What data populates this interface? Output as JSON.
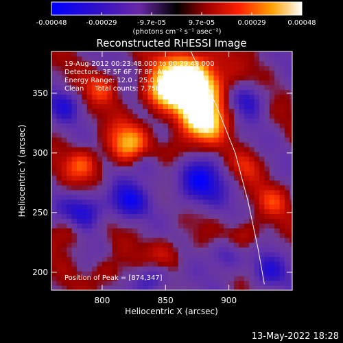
{
  "chart_data": {
    "type": "heatmap",
    "title": "Reconstructed RHESSI Image",
    "xlabel": "Heliocentric X (arcsec)",
    "ylabel": "Heliocentric Y (arcsec)",
    "xlim": [
      760,
      950
    ],
    "ylim": [
      185,
      385
    ],
    "x_ticks": [
      "800",
      "850",
      "900"
    ],
    "y_ticks": [
      "200",
      "250",
      "300",
      "350"
    ],
    "colorbar": {
      "ticks": [
        "-0.00048",
        "-0.00029",
        "-9.7e-05",
        "9.7e-05",
        "0.00029",
        "0.00048"
      ],
      "unit_label": "(photons cm⁻² s⁻¹ asec⁻²)",
      "range": [
        -0.00048,
        0.00048
      ]
    },
    "annotations": [
      "19-Aug-2012 00:23:48.000 to 00:29:48.000",
      "Detectors: 3F 5F 6F 7F 8F, Att 0 to 0",
      "Energy Range: 12.0 - 25.0 keV",
      "Clean     Total counts: 7.75E+03"
    ],
    "peak_label": "Position of Peak = [874,347]",
    "peak": [
      874,
      347
    ],
    "limb_arc": [
      [
        870,
        385
      ],
      [
        890,
        340
      ],
      [
        905,
        300
      ],
      [
        915,
        260
      ],
      [
        923,
        220
      ],
      [
        928,
        190
      ]
    ],
    "sources": [
      {
        "x": 875,
        "y": 350,
        "r": 18,
        "v": 1.0
      },
      {
        "x": 880,
        "y": 325,
        "r": 12,
        "v": 0.8
      },
      {
        "x": 865,
        "y": 365,
        "r": 16,
        "v": 0.85
      },
      {
        "x": 845,
        "y": 350,
        "r": 10,
        "v": 0.6
      },
      {
        "x": 820,
        "y": 308,
        "r": 12,
        "v": 0.75
      },
      {
        "x": 785,
        "y": 290,
        "r": 10,
        "v": 0.6
      },
      {
        "x": 775,
        "y": 235,
        "r": 10,
        "v": 0.5
      },
      {
        "x": 800,
        "y": 355,
        "r": 10,
        "v": 0.45
      },
      {
        "x": 850,
        "y": 215,
        "r": 10,
        "v": 0.45
      },
      {
        "x": 912,
        "y": 230,
        "r": 10,
        "v": 0.45
      },
      {
        "x": 860,
        "y": 300,
        "r": 10,
        "v": 0.35
      },
      {
        "x": 915,
        "y": 290,
        "r": 9,
        "v": 0.35
      },
      {
        "x": 805,
        "y": 200,
        "r": 10,
        "v": 0.35
      },
      {
        "x": 935,
        "y": 260,
        "r": 10,
        "v": 0.4
      }
    ],
    "sinks": [
      {
        "x": 785,
        "y": 250,
        "r": 12,
        "v": -0.75
      },
      {
        "x": 820,
        "y": 260,
        "r": 10,
        "v": -0.65
      },
      {
        "x": 875,
        "y": 275,
        "r": 14,
        "v": -0.7
      },
      {
        "x": 840,
        "y": 195,
        "r": 10,
        "v": -0.55
      },
      {
        "x": 915,
        "y": 345,
        "r": 10,
        "v": -0.55
      },
      {
        "x": 900,
        "y": 215,
        "r": 10,
        "v": -0.55
      },
      {
        "x": 835,
        "y": 290,
        "r": 9,
        "v": -0.45
      },
      {
        "x": 930,
        "y": 200,
        "r": 10,
        "v": -0.5
      },
      {
        "x": 770,
        "y": 340,
        "r": 9,
        "v": -0.45
      }
    ]
  },
  "footer": {
    "timestamp": "13-May-2022 18:28"
  }
}
